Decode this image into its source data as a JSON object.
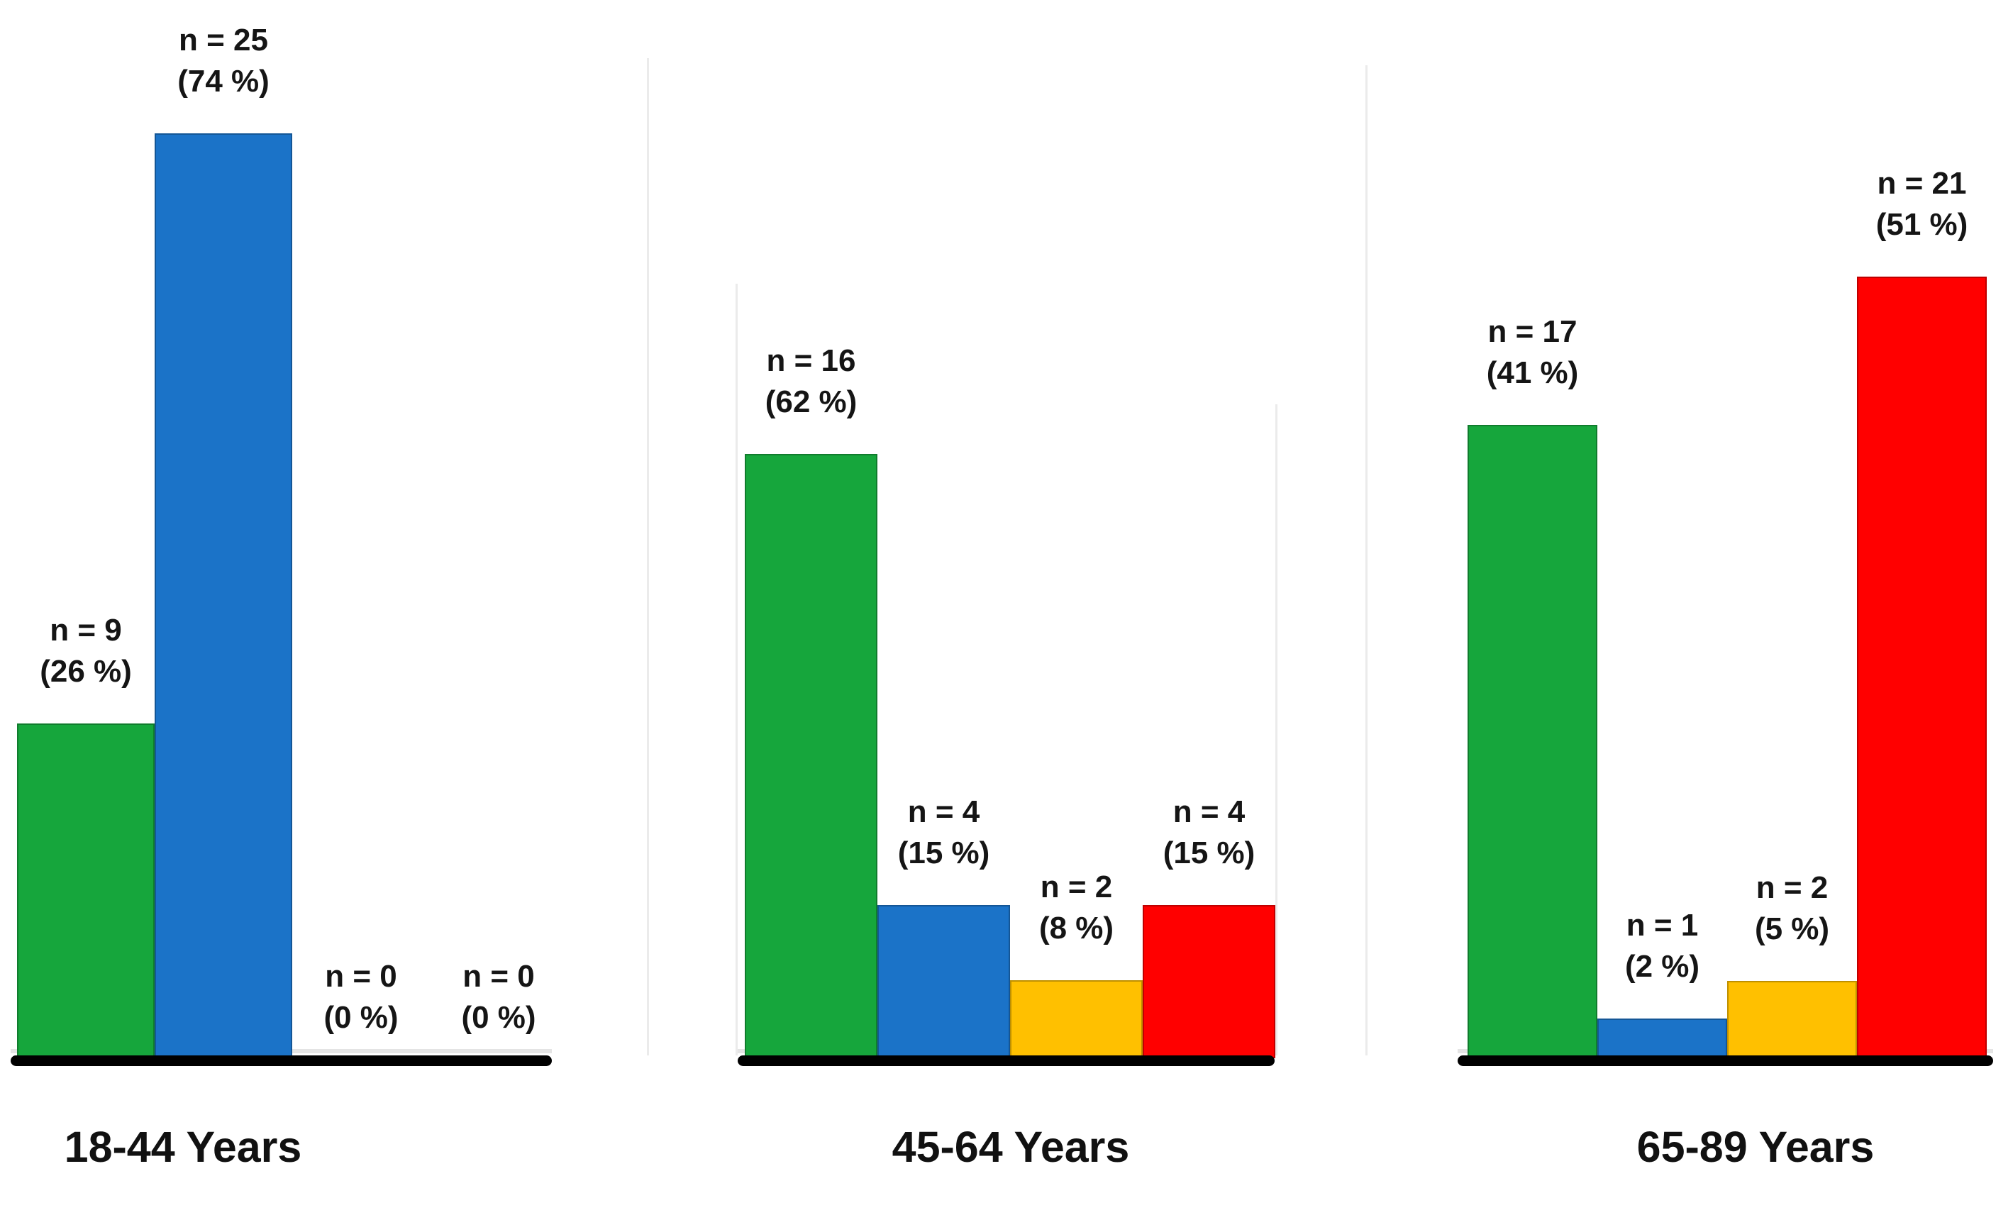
{
  "chart_data": {
    "type": "bar",
    "title": "",
    "value_label_format": "n = {n} ({pct} %)",
    "colors": {
      "green": "#16A63C",
      "blue": "#1B73C8",
      "yellow": "#FFC000",
      "red": "#FF0000",
      "baseline": "#000000",
      "text": "#151515",
      "panel_border": "#EBEBEB"
    },
    "layout_hints": {
      "grid": false,
      "legend": "none",
      "value_labels_position": "above bars",
      "group_labels_position": "below axis"
    },
    "groups": [
      {
        "label": "18-44 Years",
        "bars": [
          {
            "color": "green",
            "n": 9,
            "pct": 26,
            "label_line1": "n = 9",
            "label_line2": "(26 %)"
          },
          {
            "color": "blue",
            "n": 25,
            "pct": 74,
            "label_line1": "n = 25",
            "label_line2": "(74 %)"
          },
          {
            "color": "yellow",
            "n": 0,
            "pct": 0,
            "label_line1": "n = 0",
            "label_line2": "(0 %)"
          },
          {
            "color": "red",
            "n": 0,
            "pct": 0,
            "label_line1": "n = 0",
            "label_line2": "(0 %)"
          }
        ]
      },
      {
        "label": "45-64 Years",
        "bars": [
          {
            "color": "green",
            "n": 16,
            "pct": 62,
            "label_line1": "n = 16",
            "label_line2": "(62 %)"
          },
          {
            "color": "blue",
            "n": 4,
            "pct": 15,
            "label_line1": "n = 4",
            "label_line2": "(15 %)"
          },
          {
            "color": "yellow",
            "n": 2,
            "pct": 8,
            "label_line1": "n = 2",
            "label_line2": "(8 %)"
          },
          {
            "color": "red",
            "n": 4,
            "pct": 15,
            "label_line1": "n = 4",
            "label_line2": "(15 %)"
          }
        ]
      },
      {
        "label": "65-89 Years",
        "bars": [
          {
            "color": "green",
            "n": 17,
            "pct": 41,
            "label_line1": "n = 17",
            "label_line2": "(41 %)"
          },
          {
            "color": "blue",
            "n": 1,
            "pct": 2,
            "label_line1": "n = 1",
            "label_line2": "(2 %)"
          },
          {
            "color": "yellow",
            "n": 2,
            "pct": 5,
            "label_line1": "n = 2",
            "label_line2": "(5 %)"
          },
          {
            "color": "red",
            "n": 21,
            "pct": 51,
            "label_line1": "n = 21",
            "label_line2": "(51 %)"
          }
        ]
      }
    ]
  }
}
